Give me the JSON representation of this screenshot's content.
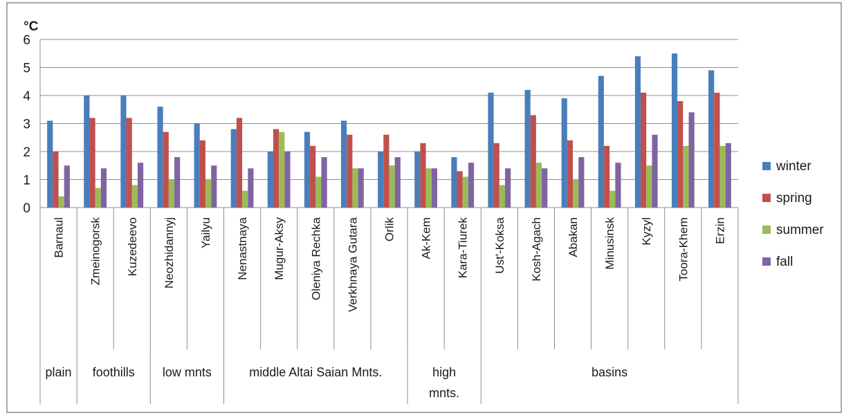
{
  "chart_data": {
    "type": "bar",
    "y_unit": "°C",
    "ylim": [
      0,
      6
    ],
    "yticks": [
      0,
      1,
      2,
      3,
      4,
      5,
      6
    ],
    "grid": true,
    "legend_position": "right",
    "categories": [
      "Barnaul",
      "Zmeinogorsk",
      "Kuzedeevo",
      "Neozhidannyj",
      "Yailyu",
      "Nenastnaya",
      "Mugur-Aksy",
      "Oleniya Rechka",
      "Verkhnaya Gutara",
      "Orlik",
      "Ak-Kem",
      "Kara-Tiurek",
      "Ust'-Koksa",
      "Kosh-Agach",
      "Abakan",
      "Minusinsk",
      "Kyzyl",
      "Toora-Khem",
      "Erzin"
    ],
    "groups": [
      {
        "label": "plain",
        "count": 1
      },
      {
        "label": "foothills",
        "count": 2
      },
      {
        "label": "low mnts",
        "count": 2
      },
      {
        "label": "middle Altai Saian Mnts.",
        "count": 5
      },
      {
        "label": "high mnts.",
        "count": 2
      },
      {
        "label": "basins",
        "count": 7
      }
    ],
    "series": [
      {
        "name": "winter",
        "color": "#4a7ebb",
        "values": [
          3.1,
          4.0,
          4.0,
          3.6,
          3.0,
          2.8,
          2.0,
          2.7,
          3.1,
          2.0,
          2.0,
          1.8,
          4.1,
          4.2,
          3.9,
          4.7,
          5.4,
          5.5,
          4.9
        ]
      },
      {
        "name": "spring",
        "color": "#c0504d",
        "values": [
          2.0,
          3.2,
          3.2,
          2.7,
          2.4,
          3.2,
          2.8,
          2.2,
          2.6,
          2.6,
          2.3,
          1.3,
          2.3,
          3.3,
          2.4,
          2.2,
          4.1,
          3.8,
          4.1
        ]
      },
      {
        "name": "summer",
        "color": "#9bbb59",
        "values": [
          0.4,
          0.7,
          0.8,
          1.0,
          1.0,
          0.6,
          2.7,
          1.1,
          1.4,
          1.5,
          1.4,
          1.1,
          0.8,
          1.6,
          1.0,
          0.6,
          1.5,
          2.2,
          2.2
        ]
      },
      {
        "name": "fall",
        "color": "#8064a2",
        "values": [
          1.5,
          1.4,
          1.6,
          1.8,
          1.5,
          1.4,
          2.0,
          1.8,
          1.4,
          1.8,
          1.4,
          1.6,
          1.4,
          1.4,
          1.8,
          1.6,
          2.6,
          3.4,
          2.3
        ]
      }
    ]
  }
}
